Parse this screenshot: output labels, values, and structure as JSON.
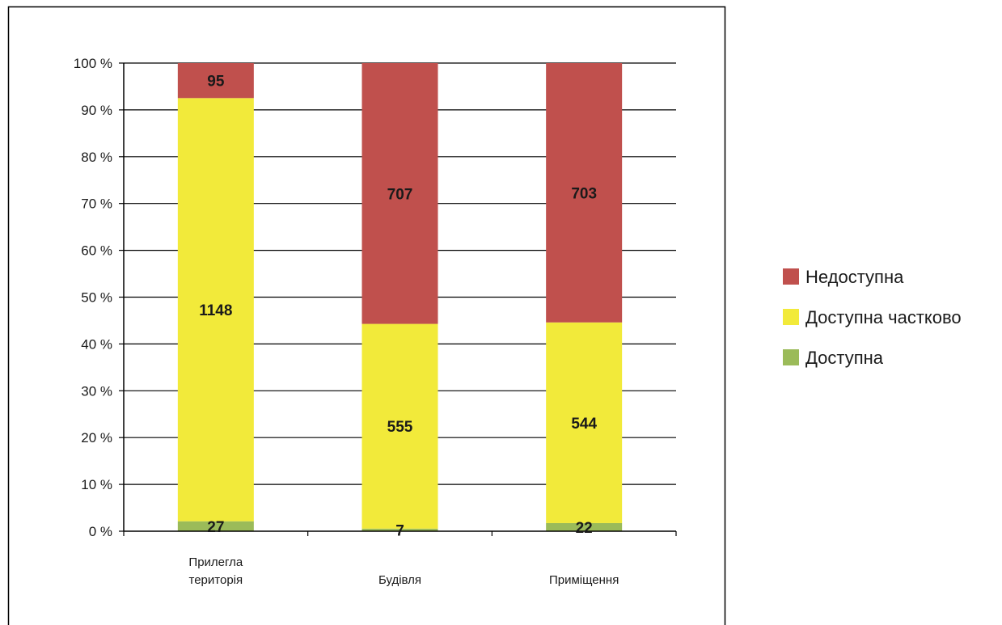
{
  "chart_data": {
    "type": "bar",
    "stacked": "percent",
    "categories": [
      [
        "Прилегла",
        "територія"
      ],
      [
        "Будівля"
      ],
      [
        "Приміщення"
      ]
    ],
    "series": [
      {
        "name": "Доступна",
        "color": "#9bbb59",
        "values": [
          27,
          7,
          22
        ]
      },
      {
        "name": "Доступна частково",
        "color": "#f2ea3a",
        "values": [
          1148,
          555,
          544
        ]
      },
      {
        "name": "Недоступна",
        "color": "#c0504d",
        "values": [
          95,
          707,
          703
        ]
      }
    ],
    "ylim": [
      0,
      100
    ],
    "yticks": [
      0,
      10,
      20,
      30,
      40,
      50,
      60,
      70,
      80,
      90,
      100
    ],
    "ytick_suffix": " %",
    "grid": true,
    "legend": {
      "placement": "right",
      "order": [
        "Недоступна",
        "Доступна частково",
        "Доступна"
      ]
    }
  }
}
